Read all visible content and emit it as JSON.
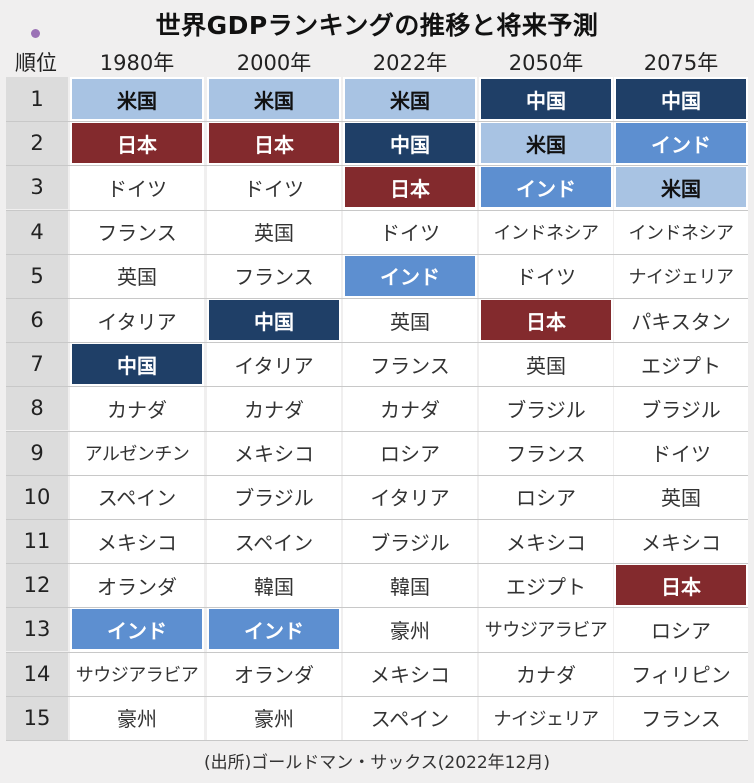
{
  "title": "世界GDPランキングの推移と将来予測",
  "rank_header": "順位",
  "source": "(出所)ゴールドマン・サックス(2022年12月)",
  "colors": {
    "米国": "#a8c3e3",
    "日本": "#832a2d",
    "中国": "#1f3f67",
    "インド": "#5d8fd0"
  },
  "chart_data": {
    "type": "table",
    "title": "世界GDPランキングの推移と将来予測",
    "ranks": [
      "1",
      "2",
      "3",
      "4",
      "5",
      "6",
      "7",
      "8",
      "9",
      "10",
      "11",
      "12",
      "13",
      "14",
      "15"
    ],
    "columns": [
      {
        "year": "1980年",
        "countries": [
          "米国",
          "日本",
          "ドイツ",
          "フランス",
          "英国",
          "イタリア",
          "中国",
          "カナダ",
          "アルゼンチン",
          "スペイン",
          "メキシコ",
          "オランダ",
          "インド",
          "サウジアラビア",
          "豪州"
        ]
      },
      {
        "year": "2000年",
        "countries": [
          "米国",
          "日本",
          "ドイツ",
          "英国",
          "フランス",
          "中国",
          "イタリア",
          "カナダ",
          "メキシコ",
          "ブラジル",
          "スペイン",
          "韓国",
          "インド",
          "オランダ",
          "豪州"
        ]
      },
      {
        "year": "2022年",
        "countries": [
          "米国",
          "中国",
          "日本",
          "ドイツ",
          "インド",
          "英国",
          "フランス",
          "カナダ",
          "ロシア",
          "イタリア",
          "ブラジル",
          "韓国",
          "豪州",
          "メキシコ",
          "スペイン"
        ]
      },
      {
        "year": "2050年",
        "countries": [
          "中国",
          "米国",
          "インド",
          "インドネシア",
          "ドイツ",
          "日本",
          "英国",
          "ブラジル",
          "フランス",
          "ロシア",
          "メキシコ",
          "エジプト",
          "サウジアラビア",
          "カナダ",
          "ナイジェリア"
        ]
      },
      {
        "year": "2075年",
        "countries": [
          "中国",
          "インド",
          "米国",
          "インドネシア",
          "ナイジェリア",
          "パキスタン",
          "エジプト",
          "ブラジル",
          "ドイツ",
          "英国",
          "メキシコ",
          "日本",
          "ロシア",
          "フィリピン",
          "フランス"
        ]
      }
    ]
  }
}
